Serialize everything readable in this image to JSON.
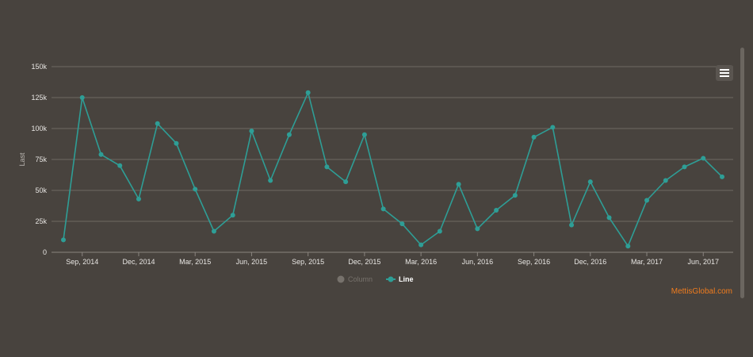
{
  "chart_data": {
    "type": "line",
    "ylabel": "Last",
    "ylim": [
      0,
      150000
    ],
    "yticks": [
      0,
      25000,
      50000,
      75000,
      100000,
      125000,
      150000
    ],
    "ytick_labels": [
      "0",
      "25k",
      "50k",
      "75k",
      "100k",
      "125k",
      "150k"
    ],
    "x_start": "Aug 2014",
    "xtick_labels": [
      "Sep, 2014",
      "Dec, 2014",
      "Mar, 2015",
      "Jun, 2015",
      "Sep, 2015",
      "Dec, 2015",
      "Mar, 2016",
      "Jun, 2016",
      "Sep, 2016",
      "Dec, 2016",
      "Mar, 2017",
      "Jun, 2017"
    ],
    "xtick_month_index": [
      1,
      4,
      7,
      10,
      13,
      16,
      19,
      22,
      25,
      28,
      31,
      34
    ],
    "grid": true,
    "series": [
      {
        "name": "Column",
        "visible": false,
        "values": []
      },
      {
        "name": "Line",
        "visible": true,
        "values": [
          10000,
          125000,
          79000,
          70000,
          43000,
          104000,
          88000,
          51000,
          17000,
          30000,
          98000,
          58000,
          95000,
          129000,
          69000,
          57000,
          95000,
          35000,
          23000,
          6000,
          17000,
          55000,
          19000,
          34000,
          46000,
          93000,
          101000,
          22000,
          57000,
          28000,
          5000,
          42000,
          58000,
          69000,
          76000,
          61000
        ]
      }
    ],
    "legend_position": "bottom-center"
  },
  "colors": {
    "line": "#2e9e96",
    "hidden_series": "#77726c",
    "legend_active": "#ffffff",
    "credit": "#f07c1e"
  },
  "menu": {
    "icon": "hamburger-icon"
  },
  "credit": {
    "text": "MettisGlobal.com"
  }
}
